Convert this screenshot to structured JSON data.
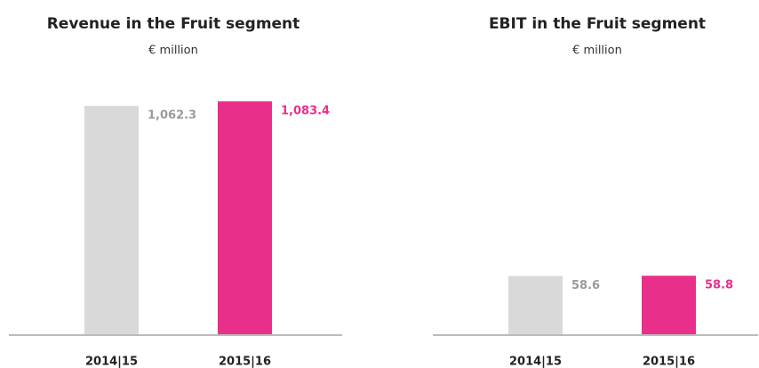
{
  "chart_data": [
    {
      "type": "bar",
      "title": "Revenue in the Fruit segment",
      "subtitle": "€ million",
      "categories": [
        "2014|15",
        "2015|16"
      ],
      "values": [
        1062.3,
        1083.4
      ],
      "value_labels": [
        "1,062.3",
        "1,083.4"
      ],
      "colors": [
        "#d9d9d9",
        "#e8308a"
      ],
      "label_colors": [
        "#9b9b9b",
        "#e8308a"
      ],
      "ylim": [
        0,
        1100
      ]
    },
    {
      "type": "bar",
      "title": "EBIT in the Fruit segment",
      "subtitle": "€ million",
      "categories": [
        "2014|15",
        "2015|16"
      ],
      "values": [
        58.6,
        58.8
      ],
      "value_labels": [
        "58.6",
        "58.8"
      ],
      "colors": [
        "#d9d9d9",
        "#e8308a"
      ],
      "label_colors": [
        "#9b9b9b",
        "#e8308a"
      ],
      "ylim": [
        0,
        235
      ]
    }
  ]
}
